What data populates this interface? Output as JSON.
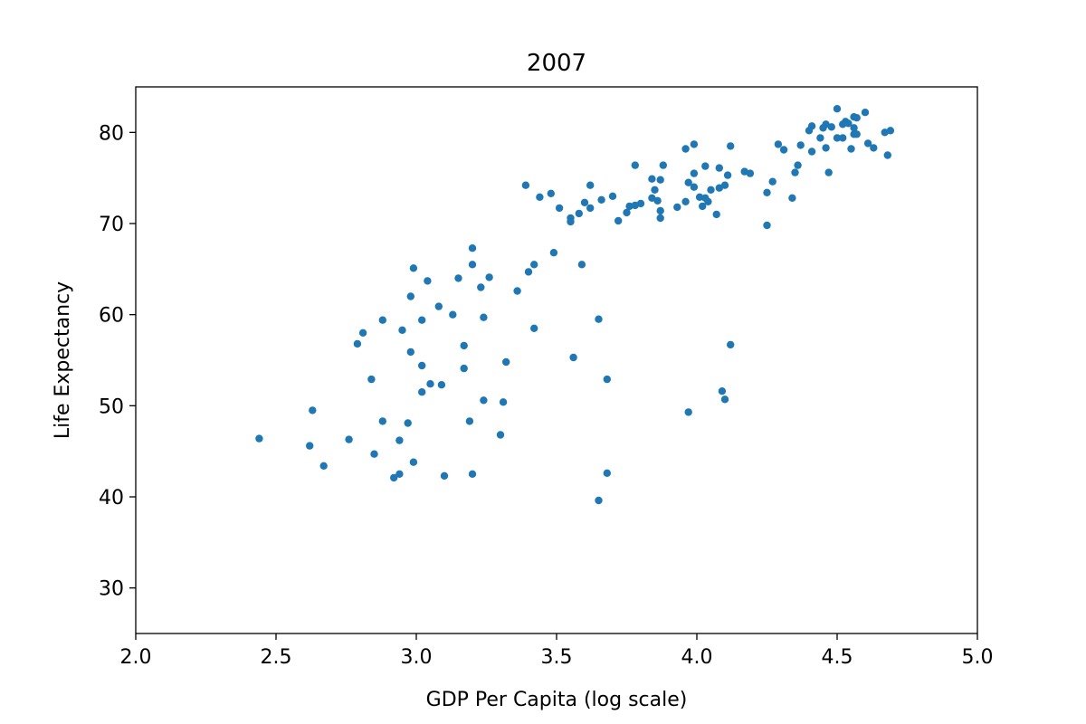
{
  "chart_data": {
    "type": "scatter",
    "title": "2007",
    "xlabel": "GDP Per Capita (log scale)",
    "ylabel": "Life Expectancy",
    "xlim": [
      2.0,
      5.0
    ],
    "ylim": [
      25,
      85
    ],
    "xticks": [
      2.0,
      2.5,
      3.0,
      3.5,
      4.0,
      4.5,
      5.0
    ],
    "xtick_labels": [
      "2.0",
      "2.5",
      "3.0",
      "3.5",
      "4.0",
      "4.5",
      "5.0"
    ],
    "yticks": [
      30,
      40,
      50,
      60,
      70,
      80
    ],
    "ytick_labels": [
      "30",
      "40",
      "50",
      "60",
      "70",
      "80"
    ],
    "grid": false,
    "marker_color": "#1f77b4",
    "points": [
      [
        2.44,
        46.4
      ],
      [
        2.62,
        45.6
      ],
      [
        2.63,
        49.5
      ],
      [
        2.67,
        43.4
      ],
      [
        2.76,
        46.3
      ],
      [
        2.79,
        56.8
      ],
      [
        2.81,
        58.0
      ],
      [
        2.84,
        52.9
      ],
      [
        2.85,
        44.7
      ],
      [
        2.88,
        59.4
      ],
      [
        2.88,
        48.3
      ],
      [
        2.92,
        42.1
      ],
      [
        2.94,
        46.2
      ],
      [
        2.94,
        42.5
      ],
      [
        2.95,
        58.3
      ],
      [
        2.97,
        48.1
      ],
      [
        2.98,
        62.0
      ],
      [
        2.98,
        55.9
      ],
      [
        2.99,
        65.1
      ],
      [
        2.99,
        43.8
      ],
      [
        3.02,
        59.4
      ],
      [
        3.02,
        54.4
      ],
      [
        3.02,
        51.5
      ],
      [
        3.04,
        63.7
      ],
      [
        3.05,
        52.4
      ],
      [
        3.08,
        60.9
      ],
      [
        3.09,
        52.3
      ],
      [
        3.1,
        42.3
      ],
      [
        3.13,
        60.0
      ],
      [
        3.15,
        64.0
      ],
      [
        3.17,
        56.6
      ],
      [
        3.17,
        54.1
      ],
      [
        3.19,
        48.3
      ],
      [
        3.2,
        67.3
      ],
      [
        3.2,
        65.5
      ],
      [
        3.2,
        42.5
      ],
      [
        3.23,
        63.0
      ],
      [
        3.24,
        59.7
      ],
      [
        3.24,
        50.6
      ],
      [
        3.26,
        64.1
      ],
      [
        3.3,
        46.8
      ],
      [
        3.31,
        50.4
      ],
      [
        3.32,
        54.8
      ],
      [
        3.36,
        62.6
      ],
      [
        3.39,
        74.2
      ],
      [
        3.4,
        64.7
      ],
      [
        3.42,
        65.5
      ],
      [
        3.42,
        58.5
      ],
      [
        3.44,
        72.9
      ],
      [
        3.48,
        73.3
      ],
      [
        3.49,
        66.8
      ],
      [
        3.51,
        71.7
      ],
      [
        3.55,
        70.6
      ],
      [
        3.55,
        70.2
      ],
      [
        3.56,
        55.3
      ],
      [
        3.58,
        71.1
      ],
      [
        3.59,
        65.5
      ],
      [
        3.6,
        72.3
      ],
      [
        3.62,
        71.7
      ],
      [
        3.62,
        74.2
      ],
      [
        3.65,
        59.5
      ],
      [
        3.65,
        39.6
      ],
      [
        3.66,
        72.6
      ],
      [
        3.68,
        52.9
      ],
      [
        3.68,
        42.6
      ],
      [
        3.7,
        73.0
      ],
      [
        3.72,
        70.3
      ],
      [
        3.75,
        71.2
      ],
      [
        3.76,
        71.9
      ],
      [
        3.78,
        76.4
      ],
      [
        3.78,
        72.0
      ],
      [
        3.8,
        72.2
      ],
      [
        3.84,
        74.9
      ],
      [
        3.84,
        72.8
      ],
      [
        3.85,
        73.7
      ],
      [
        3.86,
        72.5
      ],
      [
        3.87,
        74.8
      ],
      [
        3.87,
        71.4
      ],
      [
        3.87,
        70.6
      ],
      [
        3.88,
        76.4
      ],
      [
        3.93,
        71.8
      ],
      [
        3.96,
        78.2
      ],
      [
        3.96,
        72.4
      ],
      [
        3.97,
        74.5
      ],
      [
        3.97,
        49.3
      ],
      [
        3.99,
        78.7
      ],
      [
        3.99,
        75.5
      ],
      [
        3.99,
        74.0
      ],
      [
        4.01,
        72.9
      ],
      [
        4.02,
        71.9
      ],
      [
        4.03,
        76.3
      ],
      [
        4.03,
        72.8
      ],
      [
        4.04,
        72.4
      ],
      [
        4.05,
        73.7
      ],
      [
        4.07,
        71.0
      ],
      [
        4.08,
        76.1
      ],
      [
        4.08,
        73.9
      ],
      [
        4.09,
        51.6
      ],
      [
        4.1,
        74.2
      ],
      [
        4.1,
        50.7
      ],
      [
        4.11,
        75.3
      ],
      [
        4.12,
        78.5
      ],
      [
        4.12,
        56.7
      ],
      [
        4.17,
        75.7
      ],
      [
        4.19,
        75.5
      ],
      [
        4.25,
        73.4
      ],
      [
        4.25,
        69.8
      ],
      [
        4.27,
        74.6
      ],
      [
        4.29,
        78.7
      ],
      [
        4.31,
        78.1
      ],
      [
        4.34,
        72.8
      ],
      [
        4.35,
        75.6
      ],
      [
        4.36,
        76.4
      ],
      [
        4.37,
        78.6
      ],
      [
        4.4,
        80.2
      ],
      [
        4.41,
        80.7
      ],
      [
        4.41,
        77.9
      ],
      [
        4.44,
        79.4
      ],
      [
        4.45,
        80.5
      ],
      [
        4.46,
        80.9
      ],
      [
        4.46,
        78.3
      ],
      [
        4.47,
        75.6
      ],
      [
        4.48,
        80.6
      ],
      [
        4.5,
        82.6
      ],
      [
        4.5,
        79.4
      ],
      [
        4.52,
        80.9
      ],
      [
        4.52,
        79.4
      ],
      [
        4.53,
        81.2
      ],
      [
        4.54,
        81.0
      ],
      [
        4.55,
        78.2
      ],
      [
        4.56,
        81.7
      ],
      [
        4.56,
        80.5
      ],
      [
        4.56,
        79.8
      ],
      [
        4.57,
        81.6
      ],
      [
        4.57,
        79.8
      ],
      [
        4.6,
        82.2
      ],
      [
        4.61,
        78.8
      ],
      [
        4.63,
        78.3
      ],
      [
        4.67,
        80.0
      ],
      [
        4.68,
        77.5
      ],
      [
        4.69,
        80.2
      ]
    ]
  }
}
